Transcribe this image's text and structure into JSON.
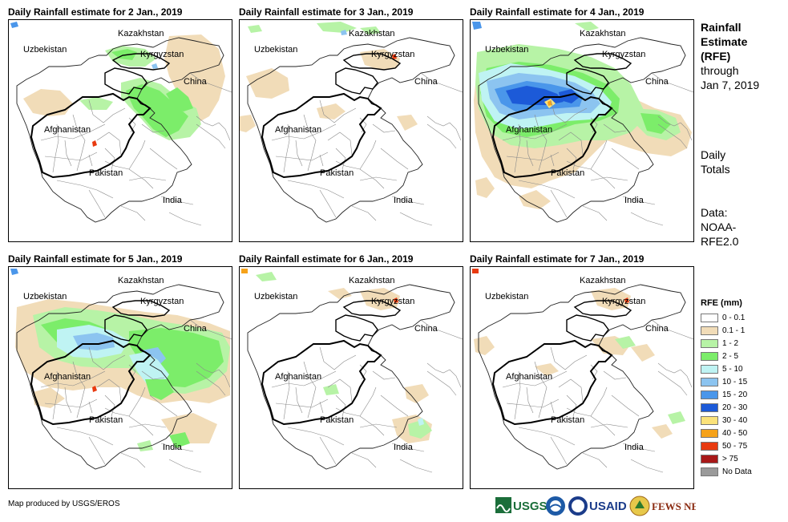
{
  "panels": [
    {
      "title": "Daily Rainfall estimate for 2 Jan., 2019"
    },
    {
      "title": "Daily Rainfall estimate for 3 Jan., 2019"
    },
    {
      "title": "Daily Rainfall estimate for 4 Jan., 2019"
    },
    {
      "title": "Daily Rainfall estimate for 5 Jan., 2019"
    },
    {
      "title": "Daily Rainfall estimate for 6 Jan., 2019"
    },
    {
      "title": "Daily Rainfall estimate for 7 Jan., 2019"
    }
  ],
  "countries": {
    "kazakhstan": "Kazakhstan",
    "uzbekistan": "Uzbekistan",
    "kyrgyzstan": "Kyrgyzstan",
    "china": "China",
    "afghanistan": "Afghanistan",
    "pakistan": "Pakistan",
    "india": "India"
  },
  "side": {
    "title_bold": [
      "Rainfall",
      "Estimate",
      "(RFE)"
    ],
    "title_rest": [
      "through",
      "Jan 7, 2019"
    ],
    "totals": [
      "Daily",
      "Totals"
    ],
    "data": [
      "Data:",
      "NOAA-",
      "RFE2.0"
    ]
  },
  "legend": {
    "title": "RFE (mm)",
    "items": [
      {
        "label": "0 - 0.1",
        "color": "#ffffff"
      },
      {
        "label": "0.1 - 1",
        "color": "#f1dcb8"
      },
      {
        "label": "1 - 2",
        "color": "#b7f3a6"
      },
      {
        "label": "2 - 5",
        "color": "#7ced6a"
      },
      {
        "label": "5 - 10",
        "color": "#bff3f3"
      },
      {
        "label": "10 - 15",
        "color": "#8cc4f0"
      },
      {
        "label": "15 - 20",
        "color": "#4a96ea"
      },
      {
        "label": "20 - 30",
        "color": "#1c5ad8"
      },
      {
        "label": "30 - 40",
        "color": "#fbe27a"
      },
      {
        "label": "40 - 50",
        "color": "#f6a21a"
      },
      {
        "label": "50 - 75",
        "color": "#e83a10"
      },
      {
        "label": "> 75",
        "color": "#a81818"
      },
      {
        "label": "No Data",
        "color": "#9a9a9a"
      }
    ]
  },
  "footer": {
    "credit": "Map produced by USGS/EROS",
    "logos": [
      "USGS",
      "USAID",
      "FEWS NET"
    ]
  }
}
